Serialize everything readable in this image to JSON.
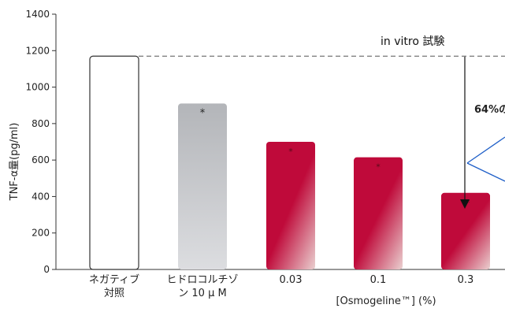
{
  "chart_data": {
    "type": "bar",
    "title": "",
    "ylabel": "TNF-α量(pg/ml)",
    "xlabel": "[Osmogeline™] (%)",
    "ylim": [
      0,
      1400
    ],
    "yticks": [
      0,
      200,
      400,
      600,
      800,
      1000,
      1200,
      1400
    ],
    "categories": [
      {
        "lines": [
          "ネガティブ",
          "対照"
        ]
      },
      {
        "lines": [
          "ヒドロコルチゾ",
          "ン 10 μ M"
        ]
      },
      {
        "lines": [
          "0.03"
        ]
      },
      {
        "lines": [
          "0.1"
        ]
      },
      {
        "lines": [
          "0.3"
        ]
      }
    ],
    "values": [
      1170,
      910,
      700,
      615,
      420
    ],
    "markers": [
      "",
      "*",
      "*",
      "*",
      "**"
    ],
    "grid": false
  },
  "annotations": {
    "invitro": "in vitro  試験",
    "pct": "64%の"
  },
  "colors": {
    "negative_fill": "#ffffff",
    "negative_stroke": "#333333",
    "gray_top": "#b3b5b9",
    "gray_bottom": "#dcdde0",
    "red_top": "#bf0a3a",
    "red_bottom": "#e8c7c9",
    "blue_accent": "#1f5fc8"
  }
}
